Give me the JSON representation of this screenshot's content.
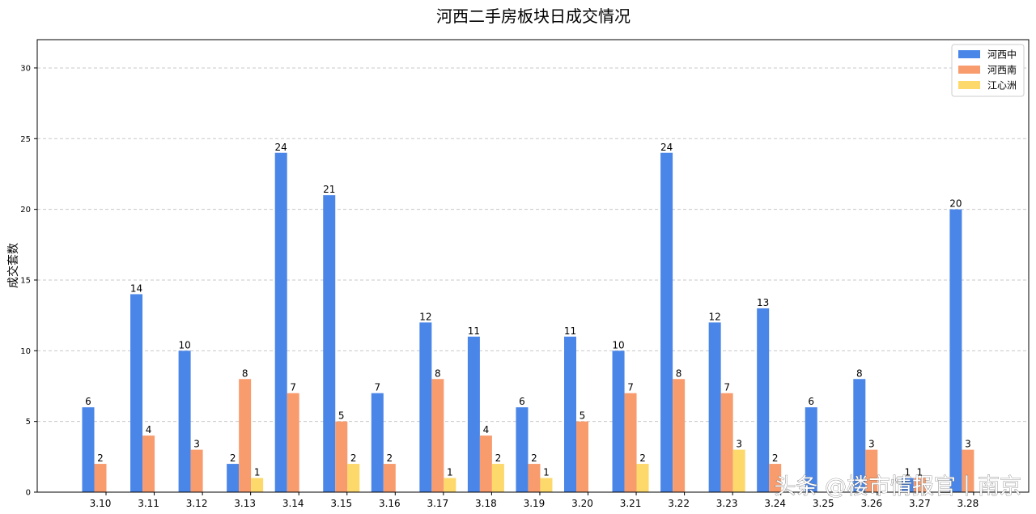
{
  "chart_data": {
    "type": "bar",
    "title": "河西二手房板块日成交情况",
    "xlabel": "",
    "ylabel": "成交套数",
    "ylim": [
      0,
      32
    ],
    "yticks": [
      0,
      5,
      10,
      15,
      20,
      25,
      30
    ],
    "grid": true,
    "legend_position": "top-right",
    "categories": [
      "3.10",
      "3.11",
      "3.12",
      "3.13",
      "3.14",
      "3.15",
      "3.16",
      "3.17",
      "3.18",
      "3.19",
      "3.20",
      "3.21",
      "3.22",
      "3.23",
      "3.24",
      "3.25",
      "3.26",
      "3.27",
      "3.28"
    ],
    "series": [
      {
        "name": "河西中",
        "color": "#4a86e8",
        "values": [
          6,
          14,
          10,
          2,
          24,
          21,
          7,
          12,
          11,
          6,
          11,
          10,
          24,
          12,
          13,
          6,
          8,
          1,
          20
        ]
      },
      {
        "name": "河西南",
        "color": "#f89c6e",
        "values": [
          2,
          4,
          3,
          8,
          7,
          5,
          2,
          8,
          4,
          2,
          5,
          7,
          8,
          7,
          2,
          0,
          3,
          1,
          3
        ]
      },
      {
        "name": "江心洲",
        "color": "#fdd96b",
        "values": [
          0,
          0,
          0,
          1,
          0,
          2,
          0,
          1,
          2,
          1,
          0,
          2,
          0,
          3,
          0,
          0,
          0,
          0,
          0
        ]
      }
    ]
  },
  "watermark": "头条 @楼市情报官丨南京"
}
